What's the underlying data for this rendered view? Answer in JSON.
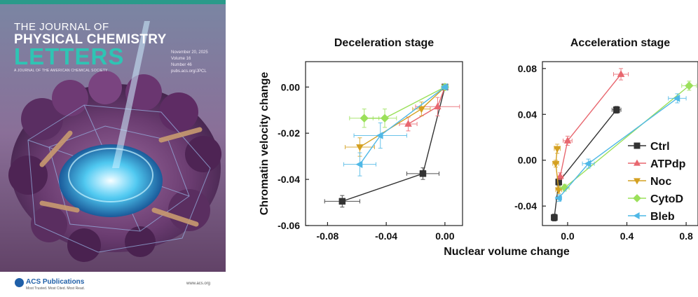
{
  "cover": {
    "title_line1": "THE JOURNAL OF",
    "title_line2": "PHYSICAL CHEMISTRY",
    "title_line3": "LETTERS",
    "subtitle": "A JOURNAL OF THE AMERICAN CHEMICAL SOCIETY",
    "date": "November 20, 2025",
    "volume": "Volume 16",
    "number": "Number 46",
    "url": "pubs.acs.org/JPCL",
    "publisher": "ACS Publications",
    "publisher_tagline": "Most Trusted. Most Cited. Most Read.",
    "website": "www.acs.org"
  },
  "shared_labels": {
    "ylabel": "Chromatin velocity change",
    "xlabel": "Nuclear volume change"
  },
  "legend": [
    {
      "name": "Ctrl",
      "color": "#333333",
      "marker": "square"
    },
    {
      "name": "ATPdp",
      "color": "#e8676f",
      "marker": "triangle-up"
    },
    {
      "name": "Noc",
      "color": "#d4a020",
      "marker": "triangle-down"
    },
    {
      "name": "CytoD",
      "color": "#9be05a",
      "marker": "diamond"
    },
    {
      "name": "Bleb",
      "color": "#4fb8e6",
      "marker": "triangle-left"
    }
  ],
  "chart_data": [
    {
      "type": "scatter",
      "title": "Deceleration stage",
      "xlim": [
        -0.095,
        0.012
      ],
      "ylim": [
        -0.06,
        0.011
      ],
      "xticks": [
        -0.08,
        -0.04,
        0.0
      ],
      "xtick_labels": [
        "-0.08",
        "-0.04",
        "0.00"
      ],
      "yticks": [
        0.0,
        -0.02,
        -0.04,
        -0.06
      ],
      "ytick_labels": [
        "0.00",
        "-0.02",
        "-0.04",
        "-0.06"
      ],
      "series": [
        {
          "name": "Ctrl",
          "color": "#333333",
          "marker": "square",
          "points": [
            {
              "x": -0.07,
              "y": -0.0495,
              "xerr": 0.012,
              "yerr": 0.0025
            },
            {
              "x": -0.015,
              "y": -0.0375,
              "xerr": 0.011,
              "yerr": 0.0025
            },
            {
              "x": 0.0,
              "y": 0.0,
              "xerr": 0.002,
              "yerr": 0.001
            }
          ]
        },
        {
          "name": "ATPdp",
          "color": "#e8676f",
          "marker": "triangle-up",
          "points": [
            {
              "x": -0.025,
              "y": -0.016,
              "xerr": 0.006,
              "yerr": 0.003
            },
            {
              "x": -0.005,
              "y": -0.0085,
              "xerr": 0.015,
              "yerr": 0.004
            },
            {
              "x": 0.0,
              "y": 0.0,
              "xerr": 0.002,
              "yerr": 0.001
            }
          ]
        },
        {
          "name": "Noc",
          "color": "#d4a020",
          "marker": "triangle-down",
          "points": [
            {
              "x": -0.058,
              "y": -0.026,
              "xerr": 0.01,
              "yerr": 0.004
            },
            {
              "x": -0.016,
              "y": -0.0095,
              "xerr": 0.006,
              "yerr": 0.003
            },
            {
              "x": 0.0,
              "y": 0.0,
              "xerr": 0.002,
              "yerr": 0.001
            }
          ]
        },
        {
          "name": "CytoD",
          "color": "#9be05a",
          "marker": "diamond",
          "points": [
            {
              "x": -0.055,
              "y": -0.0135,
              "xerr": 0.01,
              "yerr": 0.004
            },
            {
              "x": -0.041,
              "y": -0.0135,
              "xerr": 0.008,
              "yerr": 0.004
            },
            {
              "x": 0.0,
              "y": 0.0,
              "xerr": 0.002,
              "yerr": 0.001
            }
          ]
        },
        {
          "name": "Bleb",
          "color": "#4fb8e6",
          "marker": "triangle-left",
          "points": [
            {
              "x": -0.058,
              "y": -0.0335,
              "xerr": 0.011,
              "yerr": 0.005
            },
            {
              "x": -0.044,
              "y": -0.021,
              "xerr": 0.018,
              "yerr": 0.0055
            },
            {
              "x": 0.0,
              "y": 0.0,
              "xerr": 0.002,
              "yerr": 0.001
            }
          ]
        }
      ]
    },
    {
      "type": "scatter",
      "title": "Acceleration stage",
      "xlim": [
        -0.17,
        0.88
      ],
      "ylim": [
        -0.057,
        0.086
      ],
      "xticks": [
        0.0,
        0.4,
        0.8
      ],
      "xtick_labels": [
        "0.0",
        "0.4",
        "0.8"
      ],
      "yticks": [
        0.08,
        0.04,
        0.0,
        -0.04
      ],
      "ytick_labels": [
        "0.08",
        "0.04",
        "0.00",
        "-0.04"
      ],
      "series": [
        {
          "name": "Ctrl",
          "color": "#333333",
          "marker": "square",
          "points": [
            {
              "x": -0.09,
              "y": -0.05,
              "xerr": 0.02,
              "yerr": 0.003
            },
            {
              "x": -0.06,
              "y": -0.019,
              "xerr": 0.02,
              "yerr": 0.003
            },
            {
              "x": 0.33,
              "y": 0.044,
              "xerr": 0.03,
              "yerr": 0.003
            }
          ]
        },
        {
          "name": "ATPdp",
          "color": "#e8676f",
          "marker": "triangle-up",
          "points": [
            {
              "x": -0.05,
              "y": -0.014,
              "xerr": 0.02,
              "yerr": 0.003
            },
            {
              "x": 0.0,
              "y": 0.017,
              "xerr": 0.03,
              "yerr": 0.004
            },
            {
              "x": 0.36,
              "y": 0.075,
              "xerr": 0.05,
              "yerr": 0.005
            }
          ]
        },
        {
          "name": "Noc",
          "color": "#d4a020",
          "marker": "triangle-down",
          "points": [
            {
              "x": -0.07,
              "y": 0.01,
              "xerr": 0.02,
              "yerr": 0.004
            },
            {
              "x": -0.08,
              "y": -0.003,
              "xerr": 0.02,
              "yerr": 0.003
            },
            {
              "x": -0.06,
              "y": -0.026,
              "xerr": 0.02,
              "yerr": 0.003
            }
          ]
        },
        {
          "name": "CytoD",
          "color": "#9be05a",
          "marker": "diamond",
          "points": [
            {
              "x": -0.02,
              "y": -0.024,
              "xerr": 0.03,
              "yerr": 0.003
            },
            {
              "x": 0.82,
              "y": 0.065,
              "xerr": 0.05,
              "yerr": 0.004
            }
          ]
        },
        {
          "name": "Bleb",
          "color": "#4fb8e6",
          "marker": "triangle-left",
          "points": [
            {
              "x": -0.06,
              "y": -0.033,
              "xerr": 0.02,
              "yerr": 0.003
            },
            {
              "x": 0.14,
              "y": -0.003,
              "xerr": 0.04,
              "yerr": 0.004
            },
            {
              "x": 0.74,
              "y": 0.054,
              "xerr": 0.06,
              "yerr": 0.004
            }
          ]
        }
      ]
    }
  ]
}
